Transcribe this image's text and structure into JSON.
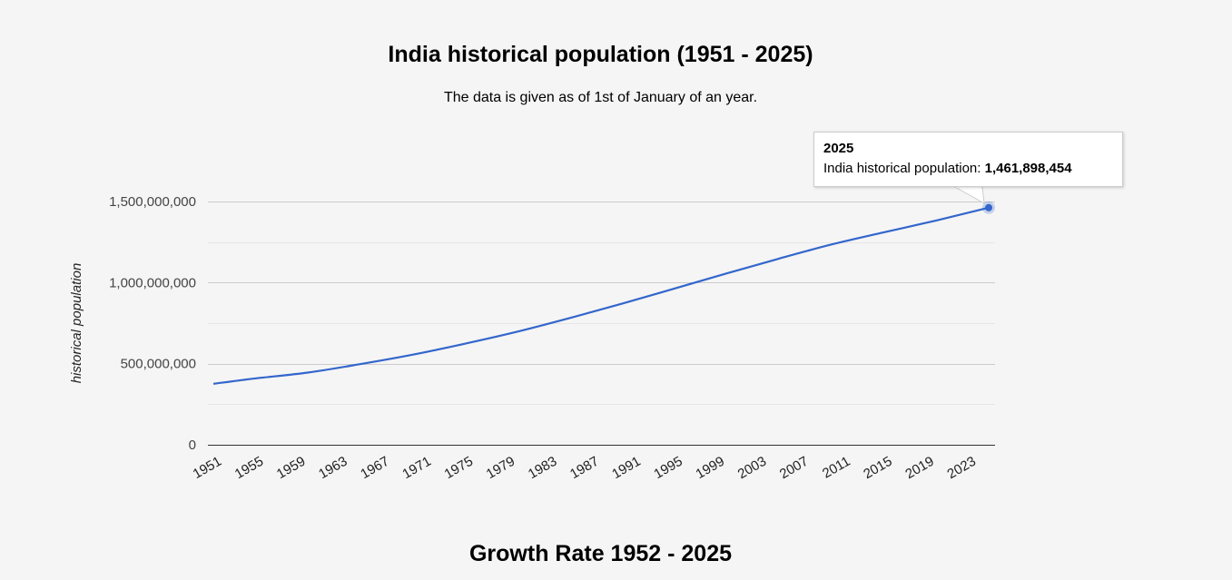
{
  "chart_data": {
    "type": "line",
    "title": "India historical population (1951 - 2025)",
    "subtitle": "The data is given as of 1st of January of an year.",
    "xlabel": "",
    "ylabel": "historical population",
    "ylim": [
      0,
      1500000000
    ],
    "y_ticks": [
      "0",
      "500,000,000",
      "1,000,000,000",
      "1,500,000,000"
    ],
    "y_tick_values": [
      0,
      500000000,
      1000000000,
      1500000000
    ],
    "x_range": [
      1951,
      2025
    ],
    "x_ticks": [
      "1951",
      "1955",
      "1959",
      "1963",
      "1967",
      "1971",
      "1975",
      "1979",
      "1983",
      "1987",
      "1991",
      "1995",
      "1999",
      "2003",
      "2007",
      "2011",
      "2015",
      "2019",
      "2023"
    ],
    "grid": true,
    "series": [
      {
        "name": "India historical population",
        "color": "#3366cc",
        "x": [
          1951,
          1955,
          1960,
          1965,
          1970,
          1975,
          1980,
          1985,
          1990,
          1995,
          2000,
          2005,
          2010,
          2015,
          2020,
          2025
        ],
        "values": [
          376000000,
          409000000,
          445000000,
          497000000,
          555000000,
          623000000,
          697000000,
          781000000,
          870000000,
          963000000,
          1057000000,
          1148000000,
          1235000000,
          1310000000,
          1383000000,
          1461898454
        ]
      }
    ],
    "tooltip": {
      "year": "2025",
      "label": "India historical population:",
      "value": "1,461,898,454"
    }
  },
  "footer": {
    "heading": "Growth Rate 1952 - 2025"
  }
}
